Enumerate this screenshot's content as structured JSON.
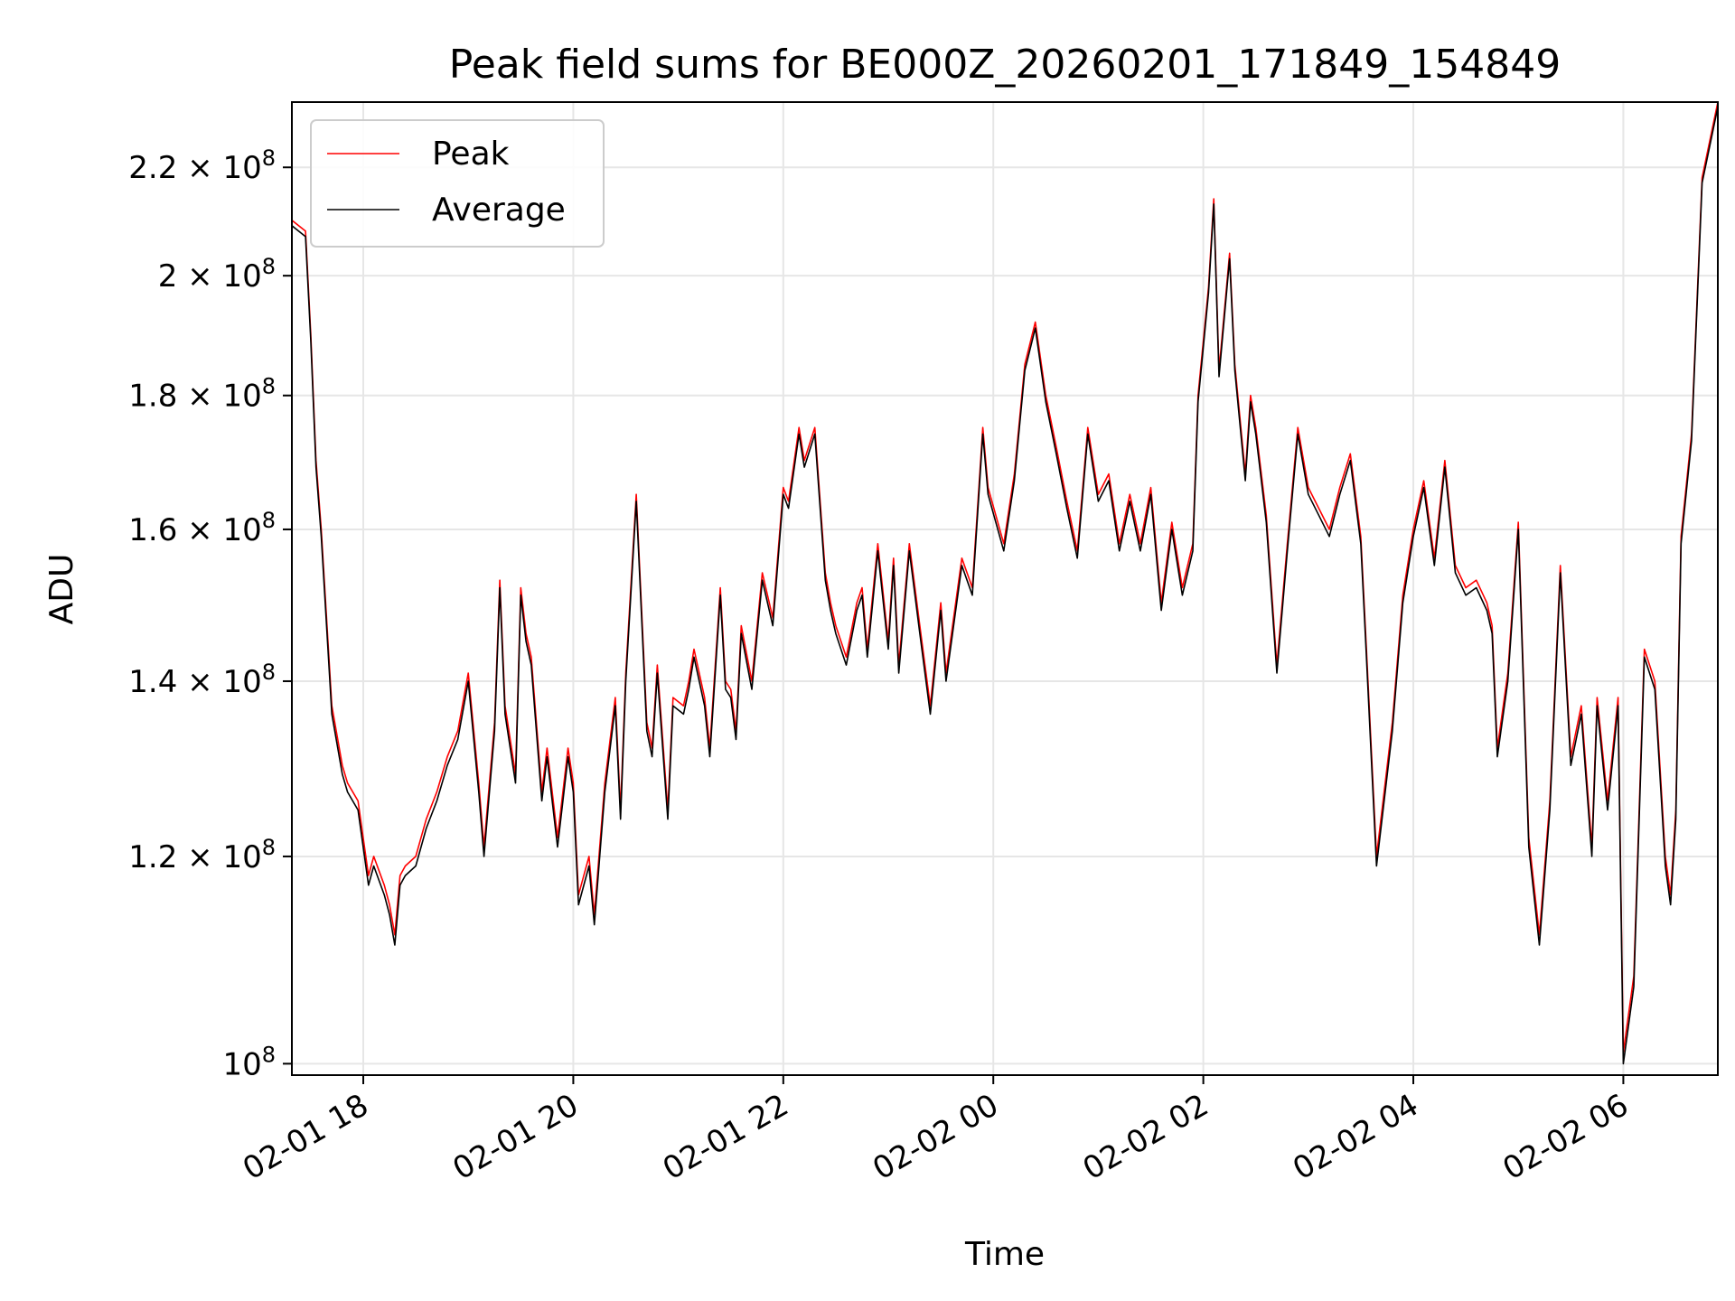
{
  "chart_data": {
    "type": "line",
    "title": "Peak field sums for BE000Z_20260201_171849_154849",
    "xlabel": "Time",
    "ylabel": "ADU",
    "y_scale": "log",
    "ylim": [
      99000000,
      233000000
    ],
    "xlim_hours": [
      -0.68,
      12.9
    ],
    "grid": true,
    "legend_position": "upper-left",
    "x_ticks": [
      {
        "hour": 0,
        "label": "02-01 18"
      },
      {
        "hour": 2,
        "label": "02-01 20"
      },
      {
        "hour": 4,
        "label": "02-01 22"
      },
      {
        "hour": 6,
        "label": "02-02 00"
      },
      {
        "hour": 8,
        "label": "02-02 02"
      },
      {
        "hour": 10,
        "label": "02-02 04"
      },
      {
        "hour": 12,
        "label": "02-02 06"
      }
    ],
    "y_ticks": [
      {
        "value": 100000000,
        "mantissa": "",
        "exponent": "8"
      },
      {
        "value": 120000000,
        "mantissa": "1.2",
        "exponent": "8"
      },
      {
        "value": 140000000,
        "mantissa": "1.4",
        "exponent": "8"
      },
      {
        "value": 160000000,
        "mantissa": "1.6",
        "exponent": "8"
      },
      {
        "value": 180000000,
        "mantissa": "1.8",
        "exponent": "8"
      },
      {
        "value": 200000000,
        "mantissa": "2",
        "exponent": "8"
      },
      {
        "value": 220000000,
        "mantissa": "2.2",
        "exponent": "8"
      }
    ],
    "series_x_hours": [
      -0.68,
      -0.55,
      -0.5,
      -0.45,
      -0.4,
      -0.3,
      -0.2,
      -0.15,
      -0.05,
      0.05,
      0.1,
      0.2,
      0.25,
      0.3,
      0.35,
      0.4,
      0.5,
      0.6,
      0.7,
      0.8,
      0.9,
      1.0,
      1.1,
      1.15,
      1.25,
      1.3,
      1.35,
      1.45,
      1.5,
      1.55,
      1.6,
      1.7,
      1.75,
      1.85,
      1.95,
      2.0,
      2.05,
      2.15,
      2.2,
      2.3,
      2.4,
      2.45,
      2.5,
      2.6,
      2.7,
      2.75,
      2.8,
      2.9,
      2.95,
      3.05,
      3.1,
      3.15,
      3.25,
      3.3,
      3.4,
      3.45,
      3.5,
      3.55,
      3.6,
      3.7,
      3.8,
      3.9,
      4.0,
      4.05,
      4.15,
      4.2,
      4.3,
      4.4,
      4.45,
      4.5,
      4.6,
      4.7,
      4.75,
      4.8,
      4.9,
      5.0,
      5.05,
      5.1,
      5.2,
      5.3,
      5.4,
      5.5,
      5.55,
      5.7,
      5.8,
      5.9,
      5.95,
      6.1,
      6.2,
      6.3,
      6.4,
      6.5,
      6.6,
      6.7,
      6.8,
      6.9,
      7.0,
      7.1,
      7.2,
      7.3,
      7.4,
      7.5,
      7.6,
      7.7,
      7.8,
      7.9,
      7.95,
      8.05,
      8.1,
      8.15,
      8.25,
      8.3,
      8.4,
      8.45,
      8.5,
      8.6,
      8.7,
      8.8,
      8.9,
      9.0,
      9.1,
      9.2,
      9.3,
      9.4,
      9.5,
      9.55,
      9.65,
      9.8,
      9.9,
      10.0,
      10.1,
      10.2,
      10.3,
      10.4,
      10.5,
      10.6,
      10.7,
      10.75,
      10.8,
      10.9,
      11.0,
      11.1,
      11.2,
      11.3,
      11.4,
      11.5,
      11.6,
      11.7,
      11.75,
      11.85,
      11.95,
      12.0,
      12.1,
      12.2,
      12.3,
      12.4,
      12.45,
      12.5,
      12.55,
      12.65,
      12.75,
      12.9
    ],
    "series": [
      {
        "name": "Peak",
        "color": "#ff0000",
        "values": [
          210000000,
          208000000,
          190000000,
          170000000,
          160000000,
          137000000,
          130000000,
          128000000,
          126000000,
          118000000,
          120000000,
          117000000,
          115000000,
          112000000,
          118000000,
          119000000,
          120000000,
          124000000,
          127000000,
          131000000,
          134000000,
          141000000,
          128000000,
          121000000,
          135000000,
          153000000,
          137000000,
          129000000,
          152000000,
          146000000,
          143000000,
          127000000,
          132000000,
          122000000,
          132000000,
          128000000,
          116000000,
          120000000,
          114000000,
          128000000,
          138000000,
          125000000,
          141000000,
          165000000,
          135000000,
          132000000,
          142000000,
          125000000,
          138000000,
          137000000,
          140000000,
          144000000,
          138000000,
          132000000,
          152000000,
          140000000,
          139000000,
          134000000,
          147000000,
          140000000,
          154000000,
          148000000,
          166000000,
          164000000,
          175000000,
          170000000,
          175000000,
          154000000,
          150000000,
          147000000,
          143000000,
          150000000,
          152000000,
          144000000,
          158000000,
          145000000,
          156000000,
          142000000,
          158000000,
          147000000,
          137000000,
          150000000,
          141000000,
          156000000,
          152000000,
          175000000,
          166000000,
          158000000,
          168000000,
          185000000,
          192000000,
          180000000,
          172000000,
          164000000,
          157000000,
          175000000,
          165000000,
          168000000,
          158000000,
          165000000,
          158000000,
          166000000,
          150000000,
          161000000,
          152000000,
          158000000,
          180000000,
          198000000,
          214000000,
          184000000,
          204000000,
          185000000,
          168000000,
          180000000,
          175000000,
          162000000,
          142000000,
          158000000,
          175000000,
          166000000,
          163000000,
          160000000,
          166000000,
          171000000,
          159000000,
          145000000,
          120000000,
          135000000,
          151000000,
          160000000,
          167000000,
          156000000,
          170000000,
          155000000,
          152000000,
          153000000,
          150000000,
          147000000,
          132000000,
          141000000,
          161000000,
          122000000,
          112000000,
          126000000,
          155000000,
          131000000,
          137000000,
          121000000,
          138000000,
          126000000,
          138000000,
          101000000,
          108000000,
          144000000,
          140000000,
          120000000,
          116000000,
          125000000,
          159000000,
          174000000,
          218000000,
          233000000
        ]
      },
      {
        "name": "Average",
        "color": "#000000",
        "values": [
          209000000,
          207000000,
          189000000,
          169000000,
          159000000,
          136000000,
          129000000,
          127000000,
          125000000,
          117000000,
          119000000,
          116000000,
          114000000,
          111000000,
          117000000,
          118000000,
          119000000,
          123000000,
          126000000,
          130000000,
          133000000,
          140000000,
          127000000,
          120000000,
          134000000,
          152000000,
          136000000,
          128000000,
          151000000,
          145000000,
          142000000,
          126000000,
          131000000,
          121000000,
          131000000,
          127000000,
          115000000,
          119000000,
          113000000,
          127000000,
          137000000,
          124000000,
          140000000,
          164000000,
          134000000,
          131000000,
          141000000,
          124000000,
          137000000,
          136000000,
          139000000,
          143000000,
          137000000,
          131000000,
          151000000,
          139000000,
          138000000,
          133000000,
          146000000,
          139000000,
          153000000,
          147000000,
          165000000,
          163000000,
          174000000,
          169000000,
          174000000,
          153000000,
          149000000,
          146000000,
          142000000,
          149000000,
          151000000,
          143000000,
          157000000,
          144000000,
          155000000,
          141000000,
          157000000,
          146000000,
          136000000,
          149000000,
          140000000,
          155000000,
          151000000,
          174000000,
          165000000,
          157000000,
          167000000,
          184000000,
          191000000,
          179000000,
          171000000,
          163000000,
          156000000,
          174000000,
          164000000,
          167000000,
          157000000,
          164000000,
          157000000,
          165000000,
          149000000,
          160000000,
          151000000,
          157000000,
          179000000,
          197000000,
          213000000,
          183000000,
          203000000,
          184000000,
          167000000,
          179000000,
          174000000,
          161000000,
          141000000,
          157000000,
          174000000,
          165000000,
          162000000,
          159000000,
          165000000,
          170000000,
          158000000,
          144000000,
          119000000,
          134000000,
          150000000,
          159000000,
          166000000,
          155000000,
          169000000,
          154000000,
          151000000,
          152000000,
          149000000,
          146000000,
          131000000,
          140000000,
          160000000,
          121000000,
          111000000,
          125000000,
          154000000,
          130000000,
          136000000,
          120000000,
          137000000,
          125000000,
          137000000,
          100000000,
          107000000,
          143000000,
          139000000,
          119000000,
          115000000,
          124000000,
          158000000,
          173000000,
          217000000,
          232000000
        ]
      }
    ]
  }
}
